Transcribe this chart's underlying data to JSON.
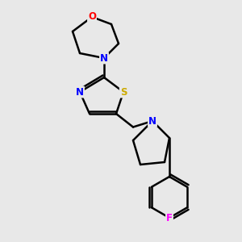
{
  "background_color": "#e8e8e8",
  "bond_color": "#000000",
  "atom_colors": {
    "O": "#ff0000",
    "N": "#0000ff",
    "S": "#ccaa00",
    "F": "#ff00ff",
    "C": "#000000"
  },
  "line_width": 1.8,
  "font_size": 8.5,
  "figsize": [
    3.0,
    3.0
  ],
  "dpi": 100
}
